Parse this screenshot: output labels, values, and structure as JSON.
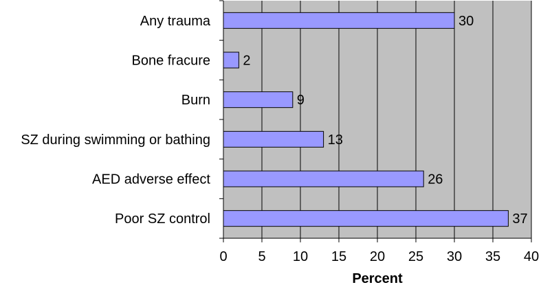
{
  "chart_data": {
    "type": "bar",
    "orientation": "horizontal",
    "categories": [
      "Any trauma",
      "Bone fracure",
      "Burn",
      "SZ during swimming or bathing",
      "AED adverse effect",
      "Poor SZ control"
    ],
    "values": [
      30,
      2,
      9,
      13,
      26,
      37
    ],
    "title": "",
    "xlabel": "Percent",
    "ylabel": "",
    "xlim": [
      0,
      40
    ],
    "xticks": [
      "0",
      "5",
      "10",
      "15",
      "20",
      "25",
      "30",
      "35",
      "40"
    ],
    "grid": "vertical",
    "colors": {
      "plot_background": "#c0c0c0",
      "bar_fill": "#9999ff",
      "bar_stroke": "#000000",
      "grid": "#000000"
    }
  }
}
